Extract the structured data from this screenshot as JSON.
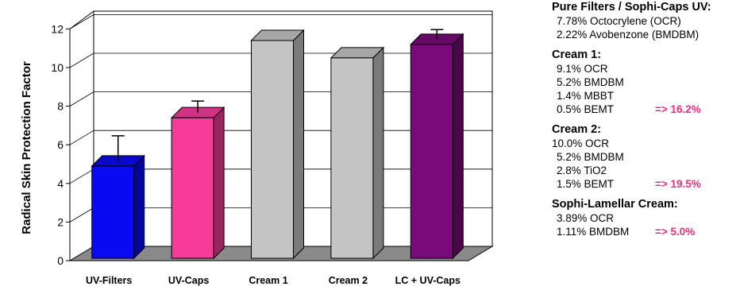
{
  "chart_data": {
    "type": "bar",
    "title": "",
    "xlabel": "",
    "ylabel": "Radical Skin Protection Factor",
    "ylim": [
      0,
      12
    ],
    "yticks": [
      0,
      2,
      4,
      6,
      8,
      10,
      12
    ],
    "grid": true,
    "bar_style": "3d",
    "categories": [
      "UV-Filters",
      "UV-Caps",
      "Cream 1",
      "Cream 2",
      "LC + UV-Caps"
    ],
    "values": [
      4.9,
      7.4,
      11.4,
      10.5,
      11.2
    ],
    "error_upper": [
      6.2,
      8.0,
      null,
      null,
      11.7
    ],
    "colors": [
      "#0a0af2",
      "#f43c98",
      "#c4c4c4",
      "#c4c4c4",
      "#7a0a7a"
    ]
  },
  "legend": [
    {
      "title": "Pure Filters / Sophi-Caps UV:",
      "lines": [
        {
          "text": "7.78% Octocrylene (OCR)",
          "result": "",
          "indent": true
        },
        {
          "text": "2.22% Avobenzone (BMDBM)",
          "result": "",
          "indent": true
        }
      ]
    },
    {
      "title": "Cream 1:",
      "lines": [
        {
          "text": "9.1% OCR",
          "result": "",
          "indent": true
        },
        {
          "text": "5.2% BMDBM",
          "result": "",
          "indent": true
        },
        {
          "text": "1.4% MBBT",
          "result": "",
          "indent": true
        },
        {
          "text": "0.5% BEMT",
          "result": "=> 16.2%",
          "indent": true
        }
      ]
    },
    {
      "title": "Cream 2:",
      "lines": [
        {
          "text": "10.0% OCR",
          "result": "",
          "indent": false
        },
        {
          "text": "5.2% BMDBM",
          "result": "",
          "indent": true
        },
        {
          "text": "2.8% TiO2",
          "result": "",
          "indent": true
        },
        {
          "text": "1.5% BEMT",
          "result": "=> 19.5%",
          "indent": true
        }
      ]
    },
    {
      "title": "Sophi-Lamellar Cream:",
      "lines": [
        {
          "text": "3.89% OCR",
          "result": "",
          "indent": true
        },
        {
          "text": "1.11% BMDBM",
          "result": "=> 5.0%",
          "indent": true
        }
      ]
    }
  ]
}
